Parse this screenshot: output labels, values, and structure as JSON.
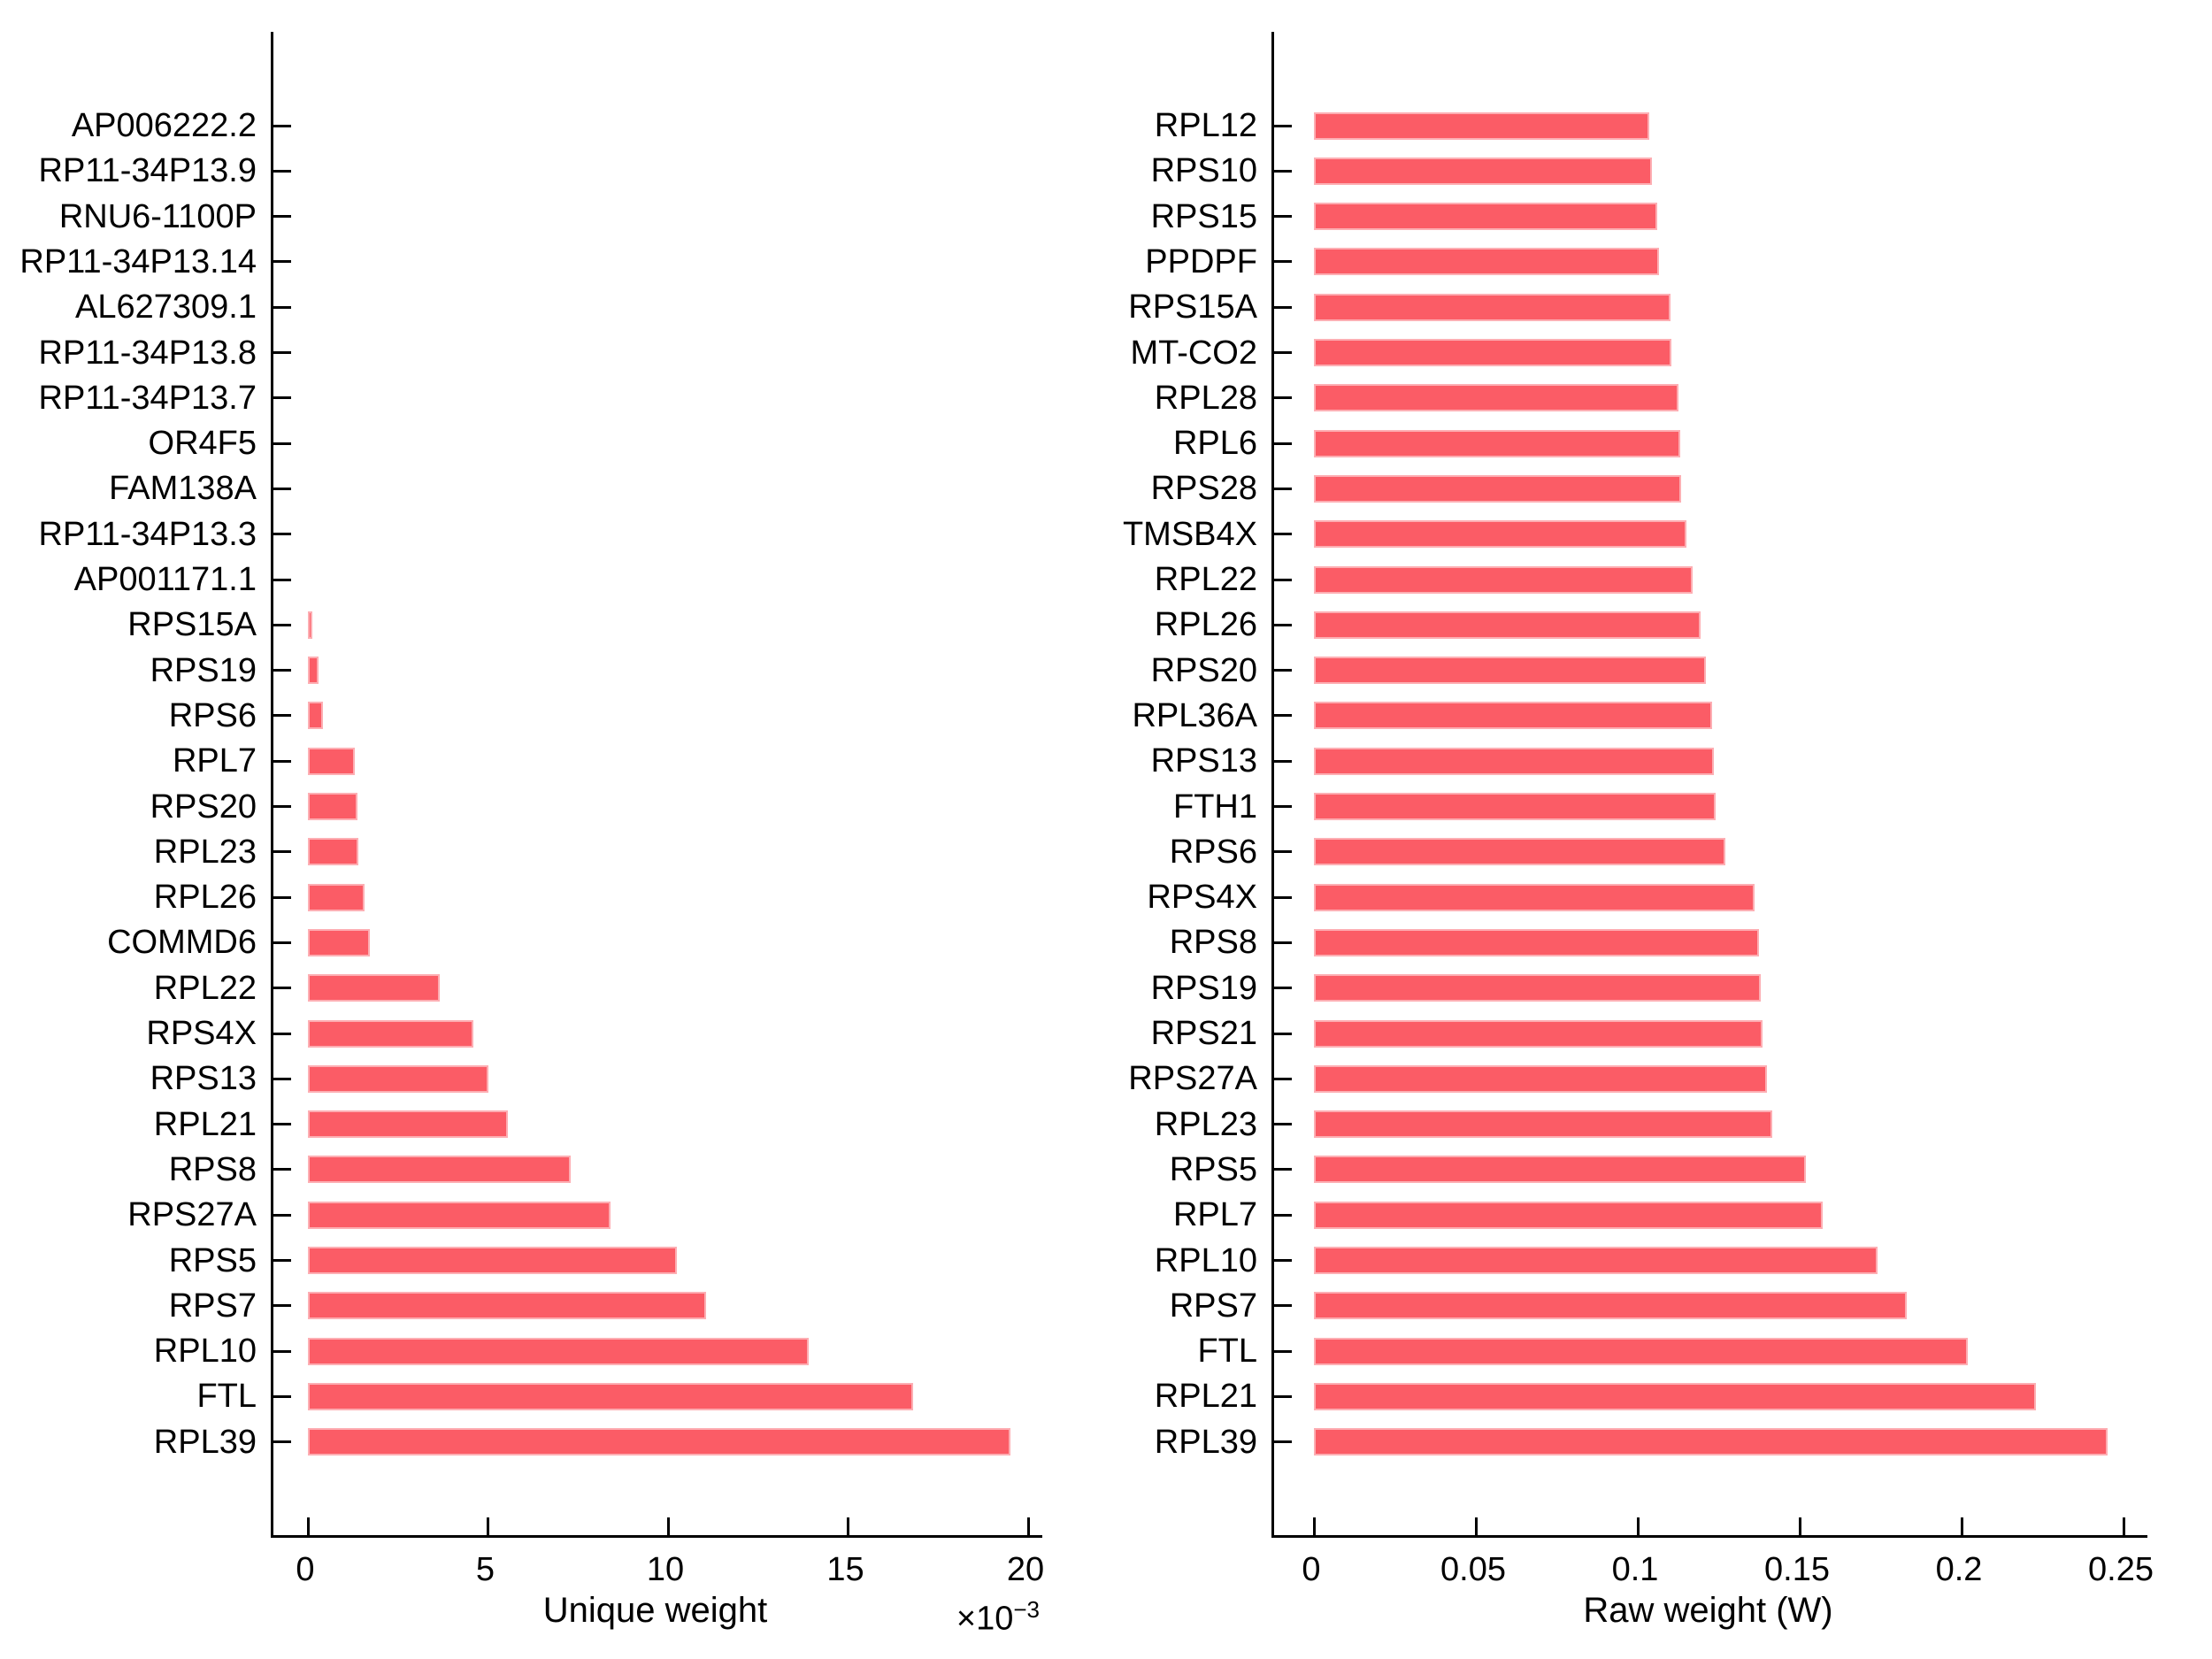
{
  "figure": {
    "background": "#ffffff",
    "bar_color": "#FB5C66",
    "axis_color": "#000000",
    "text_color": "#000000"
  },
  "chart_data": [
    {
      "id": "unique-weight",
      "type": "bar",
      "orientation": "horizontal",
      "title": "",
      "xlabel": "Unique weight",
      "ylabel": "",
      "offset_base": "×10",
      "offset_exp": "−3",
      "unit_multiplier": "1e-3",
      "xlim": [
        0,
        20.4
      ],
      "grid": false,
      "legend": "none",
      "x_ticks": [
        0,
        5,
        10,
        15,
        20
      ],
      "x_tick_labels": [
        "0",
        "5",
        "10",
        "15",
        "20"
      ],
      "categories": [
        "AP006222.2",
        "RP11-34P13.9",
        "RNU6-1100P",
        "RP11-34P13.14",
        "AL627309.1",
        "RP11-34P13.8",
        "RP11-34P13.7",
        "OR4F5",
        "FAM138A",
        "RP11-34P13.3",
        "AP001171.1",
        "RPS15A",
        "RPS19",
        "RPS6",
        "RPL7",
        "RPS20",
        "RPL23",
        "RPL26",
        "COMMD6",
        "RPL22",
        "RPS4X",
        "RPS13",
        "RPL21",
        "RPS8",
        "RPS27A",
        "RPS5",
        "RPS7",
        "RPL10",
        "FTL",
        "RPL39"
      ],
      "values": [
        0,
        0,
        0,
        0,
        0,
        0,
        0,
        0,
        0,
        0,
        0,
        0.13,
        0.3,
        0.42,
        1.3,
        1.37,
        1.4,
        1.57,
        1.72,
        3.65,
        4.6,
        5.0,
        5.55,
        7.3,
        8.4,
        10.25,
        11.05,
        13.9,
        16.8,
        19.5
      ]
    },
    {
      "id": "raw-weight",
      "type": "bar",
      "orientation": "horizontal",
      "title": "",
      "xlabel": "Raw weight (W)",
      "ylabel": "",
      "xlim": [
        0,
        0.258
      ],
      "grid": false,
      "legend": "none",
      "x_ticks": [
        0,
        0.05,
        0.1,
        0.15,
        0.2,
        0.25
      ],
      "x_tick_labels": [
        "0",
        "0.05",
        "0.1",
        "0.15",
        "0.2",
        "0.25"
      ],
      "categories": [
        "RPL12",
        "RPS10",
        "RPS15",
        "PPDPF",
        "RPS15A",
        "MT-CO2",
        "RPL28",
        "RPL6",
        "RPS28",
        "TMSB4X",
        "RPL22",
        "RPL26",
        "RPS20",
        "RPL36A",
        "RPS13",
        "FTH1",
        "RPS6",
        "RPS4X",
        "RPS8",
        "RPS19",
        "RPS21",
        "RPS27A",
        "RPL23",
        "RPS5",
        "RPL7",
        "RPL10",
        "RPS7",
        "FTL",
        "RPL21",
        "RPL39"
      ],
      "values": [
        0.1035,
        0.1045,
        0.106,
        0.1065,
        0.11,
        0.1105,
        0.1125,
        0.113,
        0.1135,
        0.115,
        0.117,
        0.1195,
        0.121,
        0.123,
        0.1235,
        0.124,
        0.127,
        0.136,
        0.1375,
        0.138,
        0.1385,
        0.14,
        0.1415,
        0.152,
        0.157,
        0.174,
        0.183,
        0.202,
        0.223,
        0.245
      ]
    }
  ]
}
